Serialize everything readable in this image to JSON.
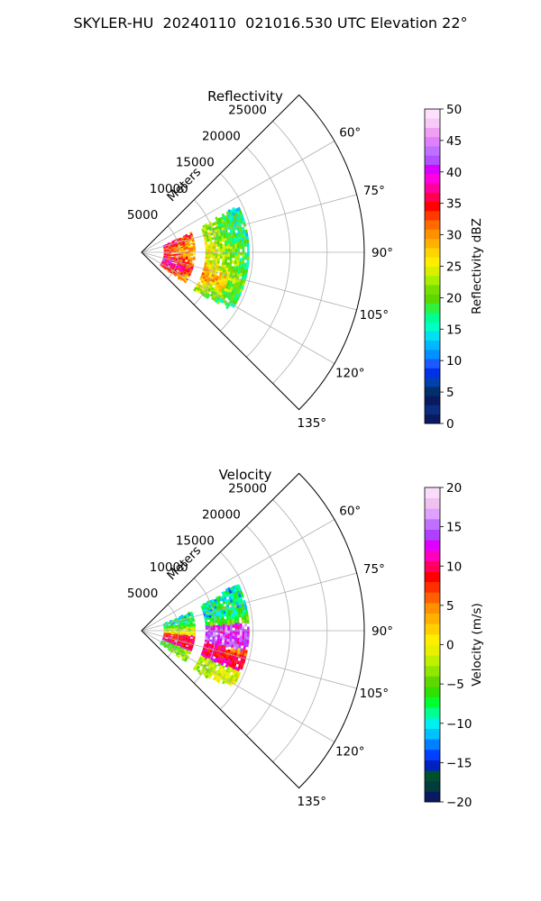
{
  "figure": {
    "title": "SKYLER-HU  20240110  021016.530 UTC Elevation 22°"
  },
  "chart_data": [
    {
      "type": "polar-sector",
      "title": "Reflectivity",
      "range_axis_label": "Meters",
      "range_ticks": [
        5000,
        10000,
        15000,
        20000,
        25000
      ],
      "range_tick_labels": [
        "5000",
        "10000",
        "15000",
        "20000",
        "25000"
      ],
      "range_lim": [
        0,
        30000
      ],
      "theta_lim_deg": [
        45,
        135
      ],
      "angle_ticks_deg": [
        60,
        75,
        90,
        105,
        120,
        135
      ],
      "angle_tick_labels": [
        "60°",
        "75°",
        "90°",
        "105°",
        "120°",
        "135°"
      ],
      "grid": true,
      "colorbar": {
        "label": "Reflectivity dBZ",
        "min": 0,
        "max": 50,
        "ticks": [
          0,
          5,
          10,
          15,
          20,
          25,
          30,
          35,
          40,
          45,
          50
        ],
        "tick_labels": [
          "0",
          "5",
          "10",
          "15",
          "20",
          "25",
          "30",
          "35",
          "40",
          "45",
          "50"
        ],
        "colors": [
          "#0a1a60",
          "#0c2c80",
          "#0a1a60",
          "#00306a",
          "#0040b0",
          "#0030e8",
          "#1a5aff",
          "#0090ff",
          "#00b8ff",
          "#00e0f0",
          "#00ffc0",
          "#00ff90",
          "#30f040",
          "#5ad800",
          "#78e000",
          "#a8f000",
          "#d8f000",
          "#ffee00",
          "#ffd400",
          "#ffb000",
          "#ff9000",
          "#ff6a00",
          "#ff3a00",
          "#ff0000",
          "#ff0050",
          "#ff00a0",
          "#ff00e0",
          "#d800ff",
          "#b050ff",
          "#c070ff",
          "#e080ff",
          "#f0a0f0",
          "#f8c8f8",
          "#fce0fc"
        ]
      },
      "echo": {
        "range_m": [
          3000,
          14500
        ],
        "az_deg": [
          62,
          126
        ],
        "gap_range_m": [
          7500,
          8600
        ]
      }
    },
    {
      "type": "polar-sector",
      "title": "Velocity",
      "range_axis_label": "Meters",
      "range_ticks": [
        5000,
        10000,
        15000,
        20000,
        25000
      ],
      "range_tick_labels": [
        "5000",
        "10000",
        "15000",
        "20000",
        "25000"
      ],
      "range_lim": [
        0,
        30000
      ],
      "theta_lim_deg": [
        45,
        135
      ],
      "angle_ticks_deg": [
        60,
        75,
        90,
        105,
        120,
        135
      ],
      "angle_tick_labels": [
        "60°",
        "75°",
        "90°",
        "105°",
        "120°",
        "135°"
      ],
      "grid": true,
      "colorbar": {
        "label": "Velocity (m/s)",
        "min": -20,
        "max": 20,
        "ticks": [
          -20,
          -15,
          -10,
          -5,
          0,
          5,
          10,
          15,
          20
        ],
        "tick_labels": [
          "−20",
          "−15",
          "−10",
          "−5",
          "0",
          "5",
          "10",
          "15",
          "20"
        ],
        "colors": [
          "#0a1a60",
          "#003c3c",
          "#005030",
          "#0020c0",
          "#0040ff",
          "#0080ff",
          "#00c0ff",
          "#00f0f0",
          "#00ff90",
          "#00ff30",
          "#30e000",
          "#60d800",
          "#90e800",
          "#c0f000",
          "#e8f000",
          "#ffee00",
          "#ffd000",
          "#ffb000",
          "#ff9000",
          "#ff6000",
          "#ff3000",
          "#ff0000",
          "#ff0060",
          "#ff00c0",
          "#e000ff",
          "#b040ff",
          "#c070ff",
          "#e0a0ff",
          "#f0c0f0",
          "#f8dcf8"
        ]
      },
      "echo": {
        "range_m": [
          3000,
          14500
        ],
        "az_deg": [
          62,
          126
        ],
        "gap_range_m": [
          7500,
          8600
        ]
      }
    }
  ]
}
